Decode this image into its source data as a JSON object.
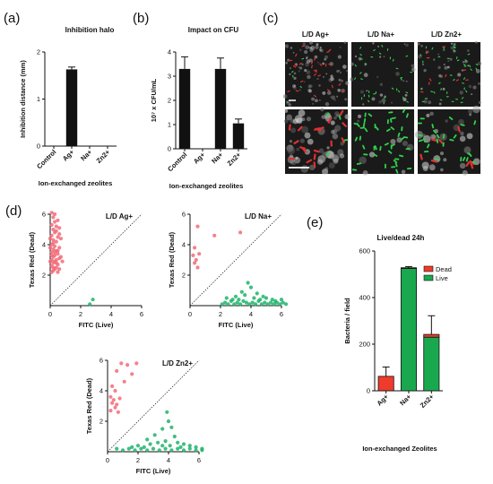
{
  "panel_labels": {
    "a": "(a)",
    "b": "(b)",
    "c": "(c)",
    "d": "(d)",
    "e": "(e)"
  },
  "colors": {
    "dead": "#ef3b2c",
    "live": "#1aa84f",
    "dead_pt": "#f26b78",
    "live_pt": "#1fb36b",
    "bar": "#111111"
  },
  "microscopy": {
    "column_labels": [
      "L/D Ag+",
      "L/D Na+",
      "L/D Zn2+"
    ]
  },
  "chart_data": [
    {
      "id": "a",
      "type": "bar",
      "title": "Inhibition halo",
      "ylabel": "Inhibition distance (mm)",
      "xlabel": "Ion-exchanged zeolites",
      "categories": [
        "Control",
        "Ag+",
        "Na+",
        "Zn2+"
      ],
      "values": [
        0,
        1.63,
        0,
        0
      ],
      "errors": [
        0,
        0.05,
        0,
        0
      ],
      "ylim": [
        0,
        2
      ],
      "yticks": [
        0,
        1,
        2
      ]
    },
    {
      "id": "b",
      "type": "bar",
      "title": "Impact on CFU",
      "ylabel": "10⁷ x CFU/mL",
      "xlabel": "Ion-exchanged zeolites",
      "categories": [
        "Control",
        "Ag+",
        "Na+",
        "Zn2+"
      ],
      "values": [
        3.3,
        0,
        3.3,
        1.05
      ],
      "errors": [
        0.5,
        0,
        0.45,
        0.18
      ],
      "ylim": [
        0,
        4
      ],
      "yticks": [
        0,
        1,
        2,
        3,
        4
      ]
    },
    {
      "id": "d1",
      "type": "scatter",
      "title": "L/D Ag+",
      "xlabel": "FITC (Live)",
      "ylabel": "Texas Red (Dead)",
      "xlim": [
        0,
        6
      ],
      "ylim": [
        0,
        6
      ],
      "xticks": [
        0,
        2,
        4,
        6
      ],
      "yticks": [
        2,
        4,
        6
      ],
      "series": [
        {
          "name": "Dead",
          "points": [
            [
              0.1,
              6.1
            ],
            [
              0.3,
              6.0
            ],
            [
              0.2,
              5.8
            ],
            [
              0.5,
              5.6
            ],
            [
              0.1,
              5.3
            ],
            [
              0.4,
              5.2
            ],
            [
              0.2,
              5.0
            ],
            [
              0.6,
              5.1
            ],
            [
              0.3,
              4.8
            ],
            [
              0.1,
              4.6
            ],
            [
              0.5,
              4.5
            ],
            [
              0.2,
              4.3
            ],
            [
              0.4,
              4.2
            ],
            [
              0.7,
              4.4
            ],
            [
              0.1,
              4.0
            ],
            [
              0.3,
              3.9
            ],
            [
              0.6,
              3.8
            ],
            [
              0.2,
              3.7
            ],
            [
              0.4,
              3.6
            ],
            [
              0.1,
              3.5
            ],
            [
              0.5,
              3.4
            ],
            [
              0.3,
              3.3
            ],
            [
              0.2,
              3.2
            ],
            [
              0.6,
              3.1
            ],
            [
              0.1,
              3.0
            ],
            [
              0.4,
              3.0
            ],
            [
              0.3,
              2.9
            ],
            [
              0.2,
              2.8
            ],
            [
              0.5,
              2.7
            ],
            [
              0.1,
              2.6
            ],
            [
              0.4,
              2.5
            ],
            [
              0.3,
              2.4
            ],
            [
              0.6,
              2.4
            ],
            [
              0.2,
              2.3
            ],
            [
              0.1,
              2.2
            ],
            [
              0.5,
              2.2
            ],
            [
              0.3,
              5.5
            ],
            [
              0.4,
              4.9
            ],
            [
              0.2,
              4.1
            ],
            [
              0.5,
              3.6
            ],
            [
              0.3,
              3.5
            ],
            [
              0.1,
              3.3
            ],
            [
              0.4,
              2.8
            ],
            [
              0.2,
              2.5
            ],
            [
              0.7,
              3.2
            ],
            [
              0.6,
              4.7
            ],
            [
              0.8,
              2.9
            ],
            [
              0.0,
              3.8
            ],
            [
              0.0,
              4.4
            ],
            [
              0.0,
              2.9
            ]
          ]
        },
        {
          "name": "Live",
          "points": [
            [
              2.6,
              0.1
            ],
            [
              2.8,
              0.4
            ]
          ]
        }
      ]
    },
    {
      "id": "d2",
      "type": "scatter",
      "title": "L/D Na+",
      "xlabel": "FITC (Live)",
      "ylabel": "Texas Red (Dead)",
      "xlim": [
        0,
        6
      ],
      "ylim": [
        0,
        6
      ],
      "xticks": [
        0,
        2,
        4,
        6
      ],
      "yticks": [
        2,
        4,
        6
      ],
      "series": [
        {
          "name": "Dead",
          "points": [
            [
              0.5,
              5.2
            ],
            [
              1.6,
              4.6
            ],
            [
              3.3,
              4.8
            ],
            [
              0.3,
              3.8
            ],
            [
              0.2,
              3.3
            ],
            [
              0.4,
              3.0
            ],
            [
              0.3,
              2.8
            ],
            [
              0.6,
              3.4
            ],
            [
              0.5,
              2.5
            ]
          ]
        },
        {
          "name": "Live",
          "points": [
            [
              2.1,
              0.1
            ],
            [
              2.3,
              0.2
            ],
            [
              2.5,
              0.1
            ],
            [
              2.7,
              0.3
            ],
            [
              2.9,
              0.1
            ],
            [
              3.1,
              0.2
            ],
            [
              3.3,
              0.1
            ],
            [
              3.5,
              0.3
            ],
            [
              3.7,
              0.2
            ],
            [
              3.9,
              0.1
            ],
            [
              4.1,
              0.2
            ],
            [
              4.3,
              0.1
            ],
            [
              4.5,
              0.3
            ],
            [
              4.7,
              0.1
            ],
            [
              4.9,
              0.2
            ],
            [
              5.1,
              0.1
            ],
            [
              5.3,
              0.2
            ],
            [
              5.5,
              0.1
            ],
            [
              5.7,
              0.2
            ],
            [
              5.9,
              0.1
            ],
            [
              6.1,
              0.2
            ],
            [
              6.3,
              0.1
            ],
            [
              2.4,
              0.5
            ],
            [
              3.0,
              0.6
            ],
            [
              3.6,
              0.7
            ],
            [
              4.2,
              0.5
            ],
            [
              4.8,
              0.6
            ],
            [
              5.4,
              0.4
            ],
            [
              3.8,
              1.5
            ],
            [
              4.0,
              1.2
            ],
            [
              3.4,
              0.9
            ],
            [
              4.4,
              0.8
            ],
            [
              2.8,
              0.4
            ],
            [
              5.0,
              0.5
            ],
            [
              5.6,
              0.3
            ],
            [
              6.0,
              0.4
            ],
            [
              3.2,
              0.4
            ],
            [
              4.6,
              0.4
            ]
          ]
        }
      ]
    },
    {
      "id": "d3",
      "type": "scatter",
      "title": "L/D Zn2+",
      "xlabel": "FITC (Live)",
      "ylabel": "Texas Red (Dead)",
      "xlim": [
        0,
        6
      ],
      "ylim": [
        0,
        6
      ],
      "xticks": [
        0,
        2,
        4,
        6
      ],
      "yticks": [
        2,
        4,
        6
      ],
      "series": [
        {
          "name": "Dead",
          "points": [
            [
              0.9,
              5.8
            ],
            [
              1.3,
              5.7
            ],
            [
              1.9,
              5.8
            ],
            [
              0.6,
              5.3
            ],
            [
              1.6,
              5.1
            ],
            [
              1.1,
              4.6
            ],
            [
              0.3,
              4.3
            ],
            [
              0.5,
              4.0
            ],
            [
              0.2,
              3.6
            ],
            [
              0.4,
              3.4
            ],
            [
              0.3,
              3.2
            ],
            [
              0.6,
              3.1
            ],
            [
              0.5,
              2.9
            ],
            [
              0.8,
              3.5
            ],
            [
              0.2,
              2.7
            ],
            [
              0.7,
              2.6
            ]
          ]
        },
        {
          "name": "Live",
          "points": [
            [
              3.9,
              2.6
            ],
            [
              4.0,
              2.0
            ],
            [
              4.2,
              1.6
            ],
            [
              3.6,
              1.5
            ],
            [
              3.1,
              1.1
            ],
            [
              4.4,
              1.0
            ],
            [
              2.6,
              0.8
            ],
            [
              2.8,
              0.5
            ],
            [
              3.3,
              0.6
            ],
            [
              3.8,
              0.7
            ],
            [
              4.6,
              0.6
            ],
            [
              5.0,
              0.5
            ],
            [
              5.4,
              0.4
            ],
            [
              5.8,
              0.3
            ],
            [
              6.2,
              0.2
            ],
            [
              0.6,
              0.2
            ],
            [
              1.0,
              0.1
            ],
            [
              1.4,
              0.2
            ],
            [
              1.8,
              0.1
            ],
            [
              2.2,
              0.2
            ],
            [
              2.6,
              0.1
            ],
            [
              3.0,
              0.2
            ],
            [
              3.4,
              0.1
            ],
            [
              3.8,
              0.2
            ],
            [
              4.2,
              0.1
            ],
            [
              4.6,
              0.2
            ],
            [
              5.0,
              0.1
            ],
            [
              5.4,
              0.2
            ],
            [
              5.8,
              0.1
            ],
            [
              6.2,
              0.1
            ],
            [
              2.0,
              0.4
            ],
            [
              2.4,
              0.3
            ],
            [
              3.6,
              0.4
            ],
            [
              4.8,
              0.3
            ],
            [
              1.6,
              0.3
            ],
            [
              4.1,
              0.4
            ]
          ]
        }
      ]
    },
    {
      "id": "e",
      "type": "bar",
      "stacked": true,
      "title": "Live/dead 24h",
      "ylabel": "Bacteria / field",
      "xlabel": "Ion-exchanged Zeolites",
      "categories": [
        "Ag+",
        "Na+",
        "Zn2+"
      ],
      "series": [
        {
          "name": "Live",
          "values": [
            0,
            525,
            230
          ]
        },
        {
          "name": "Dead",
          "values": [
            62,
            3,
            12
          ]
        }
      ],
      "errors": [
        40,
        5,
        80
      ],
      "ylim": [
        0,
        600
      ],
      "yticks": [
        0,
        200,
        400,
        600
      ],
      "legend": [
        "Dead",
        "Live"
      ],
      "legend_position": "top-right"
    }
  ]
}
